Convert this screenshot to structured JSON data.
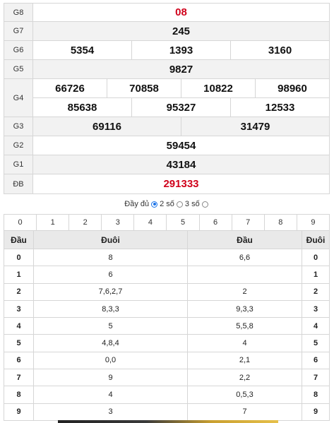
{
  "prizes": [
    {
      "label": "G8",
      "rows": [
        [
          "08"
        ]
      ],
      "red": true,
      "alt": false
    },
    {
      "label": "G7",
      "rows": [
        [
          "245"
        ]
      ],
      "red": false,
      "alt": true
    },
    {
      "label": "G6",
      "rows": [
        [
          "5354",
          "1393",
          "3160"
        ]
      ],
      "red": false,
      "alt": false
    },
    {
      "label": "G5",
      "rows": [
        [
          "9827"
        ]
      ],
      "red": false,
      "alt": true
    },
    {
      "label": "G4",
      "rows": [
        [
          "66726",
          "70858",
          "10822",
          "98960"
        ],
        [
          "85638",
          "95327",
          "12533"
        ]
      ],
      "red": false,
      "alt": false
    },
    {
      "label": "G3",
      "rows": [
        [
          "69116",
          "31479"
        ]
      ],
      "red": false,
      "alt": true
    },
    {
      "label": "G2",
      "rows": [
        [
          "59454"
        ]
      ],
      "red": false,
      "alt": false
    },
    {
      "label": "G1",
      "rows": [
        [
          "43184"
        ]
      ],
      "red": false,
      "alt": true
    },
    {
      "label": "ĐB",
      "rows": [
        [
          "291333"
        ]
      ],
      "red": true,
      "alt": false
    }
  ],
  "filter": {
    "full_label": "Đầy đủ",
    "two_label": "2 số",
    "three_label": "3 số",
    "selected": "full"
  },
  "digits": [
    "0",
    "1",
    "2",
    "3",
    "4",
    "5",
    "6",
    "7",
    "8",
    "9"
  ],
  "loto": {
    "headers": [
      "Đầu",
      "Đuôi",
      "Đầu",
      "Đuôi"
    ],
    "rows": [
      [
        "0",
        "8",
        "6,6",
        "0"
      ],
      [
        "1",
        "6",
        "",
        "1"
      ],
      [
        "2",
        "7,6,2,7",
        "2",
        "2"
      ],
      [
        "3",
        "8,3,3",
        "9,3,3",
        "3"
      ],
      [
        "4",
        "5",
        "5,5,8",
        "4"
      ],
      [
        "5",
        "4,8,4",
        "4",
        "5"
      ],
      [
        "6",
        "0,0",
        "2,1",
        "6"
      ],
      [
        "7",
        "9",
        "2,2",
        "7"
      ],
      [
        "8",
        "4",
        "0,5,3",
        "8"
      ],
      [
        "9",
        "3",
        "7",
        "9"
      ]
    ]
  },
  "colors": {
    "red": "#d0021b",
    "accent": "#1a73e8",
    "header_bg": "#e9e9e9",
    "alt_bg": "#f2f2f2"
  }
}
